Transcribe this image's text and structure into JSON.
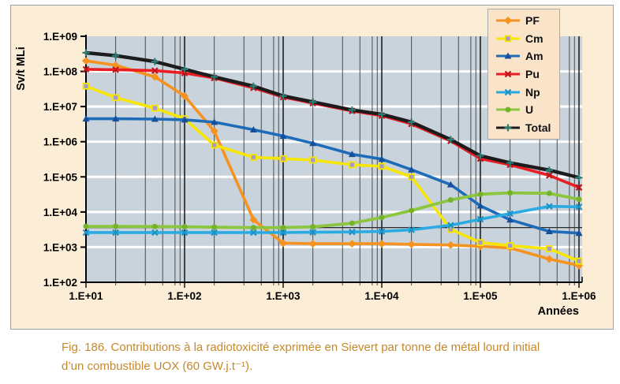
{
  "figure": {
    "caption_line1": "Fig. 186. Contributions à la radiotoxicité exprimée en Sievert par tonne de métal lourd initial",
    "caption_line2": "d’un combustible UOX (60 GW.j.t⁻¹).",
    "caption_color": "#c5892b"
  },
  "chart_data": {
    "type": "line",
    "x_scale": "log",
    "y_scale": "log",
    "xlabel": "Années",
    "ylabel": "Sv/t MLi",
    "xlim": [
      10,
      1000000
    ],
    "ylim": [
      100,
      1000000000
    ],
    "x_ticks": [
      "1.E+01",
      "1.E+02",
      "1.E+03",
      "1.E+04",
      "1.E+05",
      "1.E+06"
    ],
    "y_ticks": [
      "1.E+09",
      "1.E+08",
      "1.E+07",
      "1.E+06",
      "1.E+05",
      "1.E+04",
      "1.E+03",
      "1.E+02"
    ],
    "grid": {
      "h_major_color": "#ffffff",
      "v_major_color": "#141414",
      "v_minor_color": "#4d4d4d",
      "v_minor_multiples": [
        2,
        4,
        6,
        8,
        9
      ]
    },
    "reference_line_y": 3600,
    "legend_position": "top-right",
    "plot_bg": "#c9d3dc",
    "panel_bg": "#fbedd6",
    "legend_bg": "#f9e4ca",
    "x": [
      10,
      20,
      50,
      100,
      200,
      500,
      1000,
      2000,
      5000,
      10000,
      20000,
      50000,
      100000,
      200000,
      500000,
      1000000
    ],
    "series": [
      {
        "name": "PF",
        "color": "#f6921e",
        "marker": "diamond",
        "width": 3.6,
        "values": [
          200000000.0,
          150000000.0,
          70000000.0,
          20000000.0,
          2000000.0,
          6000.0,
          1300.0,
          1250.0,
          1250.0,
          1250.0,
          1200.0,
          1150.0,
          1050.0,
          950.0,
          460.0,
          300.0
        ]
      },
      {
        "name": "Cm",
        "color": "#f7e600",
        "marker": "square",
        "marker_fill": "#a79ac6",
        "width": 3.6,
        "values": [
          38000000.0,
          18000000.0,
          9000000.0,
          4500000.0,
          800000.0,
          360000.0,
          330000.0,
          300000.0,
          220000.0,
          200000.0,
          100000.0,
          3200.0,
          1350.0,
          1100.0,
          900.0,
          400.0
        ]
      },
      {
        "name": "Am",
        "color": "#1e6bb8",
        "marker": "triangle",
        "marker_color": "#164f9b",
        "width": 3.6,
        "values": [
          4500000.0,
          4500000.0,
          4400000.0,
          4200000.0,
          3600000.0,
          2200000.0,
          1450000.0,
          900000.0,
          440000.0,
          320000.0,
          160000.0,
          60000.0,
          15000.0,
          6000.0,
          2800.0,
          2500.0
        ]
      },
      {
        "name": "Pu",
        "color": "#ea1c24",
        "marker": "x",
        "marker_color": "#c40f16",
        "width": 3.6,
        "values": [
          115000000.0,
          112000000.0,
          105000000.0,
          90000000.0,
          65000000.0,
          34000000.0,
          18500000.0,
          12500000.0,
          7500000.0,
          5500000.0,
          3200000.0,
          1050000.0,
          330000.0,
          220000.0,
          110000.0,
          50000.0
        ]
      },
      {
        "name": "Np",
        "color": "#29abe2",
        "marker": "x",
        "marker_color": "#1b93c7",
        "width": 3.6,
        "values": [
          2600.0,
          2600.0,
          2600.0,
          2600.0,
          2600.0,
          2600.0,
          2600.0,
          2650.0,
          2700.0,
          2800.0,
          3100.0,
          4200.0,
          6200.0,
          9000.0,
          14500.0,
          14000.0
        ]
      },
      {
        "name": "U",
        "color": "#8cc63e",
        "marker": "circle",
        "marker_color": "#76b32b",
        "width": 3.8,
        "values": [
          3900.0,
          3900.0,
          3850.0,
          3800.0,
          3700.0,
          3600.0,
          3600.0,
          3800.0,
          4800.0,
          7000.0,
          11000.0,
          22000.0,
          32000.0,
          35000.0,
          34000.0,
          23000.0
        ]
      },
      {
        "name": "Total",
        "color": "#1c1c1c",
        "marker": "plus",
        "marker_color": "#2b7f77",
        "width": 4.4,
        "values": [
          340000000.0,
          280000000.0,
          190000000.0,
          115000000.0,
          70000000.0,
          38000000.0,
          20000000.0,
          13500000.0,
          8000000.0,
          6000000.0,
          3600000.0,
          1150000.0,
          400000.0,
          250000.0,
          155000.0,
          95000.0
        ]
      }
    ]
  }
}
